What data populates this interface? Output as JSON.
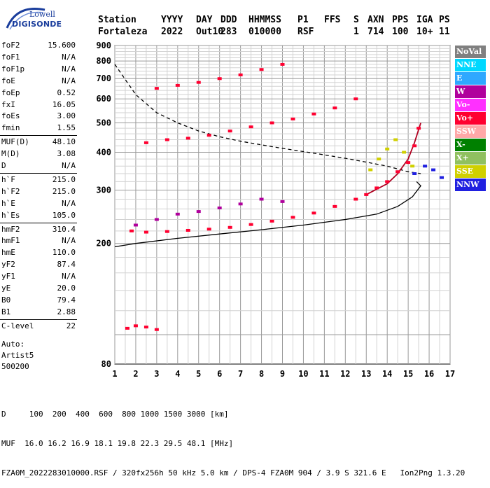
{
  "logo": {
    "line1": "Lowell",
    "line2": "DIGISONDE"
  },
  "header": {
    "labels": [
      "Station",
      "YYYY",
      "DAY",
      "DDD",
      "HHMMSS",
      "P1",
      "FFS",
      "S",
      "AXN",
      "PPS",
      "IGA",
      "PS"
    ],
    "values": [
      "Fortaleza",
      "2022",
      "Out10",
      "283",
      "010000",
      "RSF",
      "",
      "1",
      "714",
      "100",
      "10+",
      "11"
    ]
  },
  "params": [
    {
      "name": "foF2",
      "value": "15.600"
    },
    {
      "name": "foF1",
      "value": "N/A"
    },
    {
      "name": "foF1p",
      "value": "N/A"
    },
    {
      "name": "foE",
      "value": "N/A"
    },
    {
      "name": "foEp",
      "value": "0.52"
    },
    {
      "name": "fxI",
      "value": "16.05"
    },
    {
      "name": "foEs",
      "value": "3.00"
    },
    {
      "name": "fmin",
      "value": "1.55"
    },
    {
      "name": "MUF(D)",
      "value": "48.10"
    },
    {
      "name": "M(D)",
      "value": "3.08"
    },
    {
      "name": "D",
      "value": "N/A"
    },
    {
      "name": "h`F",
      "value": "215.0"
    },
    {
      "name": "h`F2",
      "value": "215.0"
    },
    {
      "name": "h`E",
      "value": "N/A"
    },
    {
      "name": "h`Es",
      "value": "105.0"
    },
    {
      "name": "hmF2",
      "value": "310.4"
    },
    {
      "name": "hmF1",
      "value": "N/A"
    },
    {
      "name": "hmE",
      "value": "110.0"
    },
    {
      "name": "yF2",
      "value": "87.4"
    },
    {
      "name": "yF1",
      "value": "N/A"
    },
    {
      "name": "yE",
      "value": "20.0"
    },
    {
      "name": "B0",
      "value": "79.4"
    },
    {
      "name": "B1",
      "value": "2.88"
    },
    {
      "name": "C-level",
      "value": "22"
    }
  ],
  "auto": {
    "line1": "Auto:",
    "line2": "Artist5",
    "line3": "500200"
  },
  "legend": [
    {
      "label": "NoVal",
      "color": "#808080"
    },
    {
      "label": "NNE",
      "color": "#00d8ff"
    },
    {
      "label": "E",
      "color": "#2fa8ff"
    },
    {
      "label": "W",
      "color": "#b0009c"
    },
    {
      "label": "Vo-",
      "color": "#ff30ff"
    },
    {
      "label": "Vo+",
      "color": "#ff0030"
    },
    {
      "label": "SSW",
      "color": "#ffa8a8"
    },
    {
      "label": "X-",
      "color": "#008000"
    },
    {
      "label": "X+",
      "color": "#90c060"
    },
    {
      "label": "SSE",
      "color": "#d0d000"
    },
    {
      "label": "NNW",
      "color": "#2020e0"
    }
  ],
  "footer": {
    "line1": "D     100  200  400  600  800 1000 1500 3000 [km]",
    "line2": "MUF  16.0 16.2 16.9 18.1 19.8 22.3 29.5 48.1 [MHz]",
    "line3": "FZA0M_2022283010000.RSF / 320fx256h 50 kHz 5.0 km / DPS-4 FZA0M 904 / 3.9 S 321.6 E   Ion2Png 1.3.20"
  },
  "chart_data": {
    "type": "scatter",
    "title": "",
    "xlabel": "",
    "ylabel": "",
    "xlim": [
      1,
      17
    ],
    "ylim": [
      80,
      900
    ],
    "yscale": "log",
    "x_ticks": [
      1,
      2,
      3,
      4,
      5,
      6,
      7,
      8,
      9,
      10,
      11,
      12,
      13,
      14,
      15,
      16,
      17
    ],
    "y_ticks": [
      80,
      200,
      300,
      400,
      500,
      600,
      700,
      800,
      900
    ],
    "grid": true,
    "legend_position": "right",
    "series": [
      {
        "name": "Vo+",
        "x": [
          1.8,
          2.5,
          3.5,
          4.5,
          5.5,
          6.5,
          7.5,
          8.5,
          9.5,
          10.5,
          11.5,
          12.5,
          13.0,
          13.5,
          14.0,
          14.5,
          15.0,
          15.3,
          15.5
        ],
        "y": [
          220,
          218,
          219,
          221,
          223,
          226,
          231,
          237,
          244,
          252,
          265,
          280,
          290,
          305,
          320,
          345,
          370,
          420,
          480
        ]
      },
      {
        "name": "Vo+ 2nd hop",
        "x": [
          2.5,
          3.5,
          4.5,
          5.5,
          6.5,
          7.5,
          8.5,
          9.5,
          10.5,
          11.5,
          12.5
        ],
        "y": [
          430,
          440,
          445,
          455,
          470,
          485,
          500,
          515,
          535,
          560,
          600
        ]
      },
      {
        "name": "Vo+ 3rd hop",
        "x": [
          3.0,
          4.0,
          5.0,
          6.0,
          7.0,
          8.0,
          9.0
        ],
        "y": [
          650,
          665,
          680,
          700,
          720,
          750,
          780
        ]
      },
      {
        "name": "W",
        "x": [
          2.0,
          3.0,
          4.0,
          5.0,
          6.0,
          7.0,
          8.0,
          9.0
        ],
        "y": [
          230,
          240,
          250,
          255,
          262,
          270,
          280,
          275
        ]
      },
      {
        "name": "SSE",
        "x": [
          13.2,
          13.6,
          14.0,
          14.4,
          14.8,
          15.2
        ],
        "y": [
          350,
          380,
          410,
          440,
          400,
          360
        ]
      },
      {
        "name": "NNW",
        "x": [
          15.3,
          15.8,
          16.2,
          16.6
        ],
        "y": [
          340,
          360,
          350,
          330
        ]
      },
      {
        "name": "Es",
        "x": [
          1.6,
          2.0,
          2.5,
          3.0
        ],
        "y": [
          105,
          107,
          106,
          104
        ]
      }
    ],
    "curves": [
      {
        "name": "MUF profile",
        "style": "dashed",
        "x": [
          1.0,
          2.0,
          3.0,
          4.0,
          5.0,
          6.0,
          7.0,
          8.0,
          9.0,
          10.0,
          11.0,
          12.0,
          13.0,
          14.0,
          15.0,
          15.6
        ],
        "y": [
          780,
          620,
          540,
          500,
          470,
          450,
          435,
          423,
          412,
          402,
          392,
          382,
          371,
          360,
          345,
          340
        ]
      },
      {
        "name": "Electron density profile",
        "style": "solid",
        "x": [
          1.0,
          2.0,
          4.0,
          6.0,
          8.0,
          10.0,
          12.0,
          13.5,
          14.5,
          15.2,
          15.6,
          15.4
        ],
        "y": [
          195,
          200,
          208,
          215,
          222,
          230,
          240,
          250,
          265,
          285,
          310,
          320
        ]
      },
      {
        "name": "Trace fit",
        "style": "solid-red",
        "x": [
          13.0,
          14.0,
          14.5,
          15.0,
          15.3,
          15.6
        ],
        "y": [
          290,
          315,
          340,
          380,
          430,
          500
        ]
      }
    ]
  }
}
